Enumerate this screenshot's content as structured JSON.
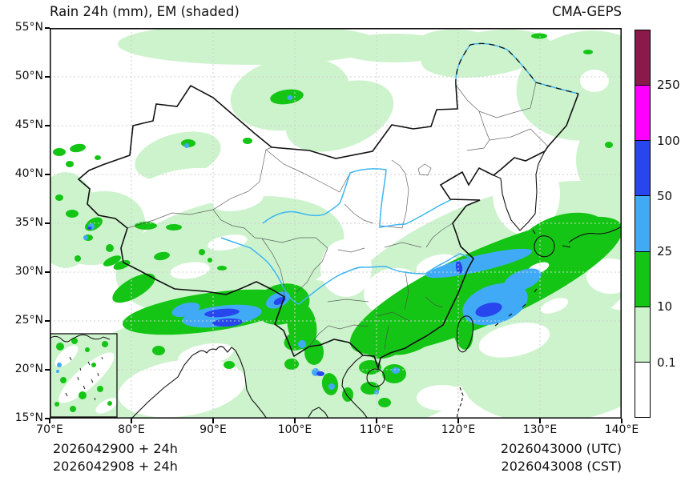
{
  "header": {
    "title_left": "Rain 24h (mm), EM (shaded)",
    "title_right": "CMA-GEPS"
  },
  "axes": {
    "x_tick_labels": [
      "70°E",
      "80°E",
      "90°E",
      "100°E",
      "110°E",
      "120°E",
      "130°E",
      "140°E"
    ],
    "y_tick_labels": [
      "55°N",
      "50°N",
      "45°N",
      "40°N",
      "35°N",
      "30°N",
      "25°N",
      "20°N",
      "15°N"
    ]
  },
  "colorbar": {
    "tick_labels_top_to_bottom": [
      "250",
      "100",
      "50",
      "25",
      "10",
      "0.1"
    ],
    "segment_colors_bottom_to_top": [
      "#ffffff",
      "#cdf3cd",
      "#15c515",
      "#41aaf7",
      "#2846ee",
      "#ff00ff",
      "#8b1a4a"
    ]
  },
  "footer": {
    "left_line1": "2026042900 + 24h",
    "left_line2": "2026042908 + 24h",
    "right_line1": "2026043000 (UTC)",
    "right_line2": "2026043008 (CST)"
  },
  "chart_data": {
    "type": "heatmap",
    "title": "Rain 24h (mm), EM (shaded)",
    "model": "CMA-GEPS",
    "projection": "lat-lon map of China and surroundings",
    "lon_range_deg_e": [
      70,
      140
    ],
    "lat_range_deg_n": [
      15,
      55
    ],
    "x_tick_values_deg_e": [
      70,
      80,
      90,
      100,
      110,
      120,
      130,
      140
    ],
    "y_tick_values_deg_n": [
      15,
      20,
      25,
      30,
      35,
      40,
      45,
      50,
      55
    ],
    "grid": "dashed graticule every 10 deg lon / 5 deg lat",
    "legend_position": "right vertical colorbar",
    "shading_levels_mm": [
      0.1,
      10,
      25,
      50,
      100,
      250
    ],
    "level_colors_low_to_high": [
      "#ffffff",
      "#cdf3cd",
      "#15c515",
      "#41aaf7",
      "#2846ee",
      "#ff00ff",
      "#8b1a4a"
    ],
    "init_label": "2026042900 + 24h",
    "init_label_cst": "2026042908 + 24h",
    "valid_label_utc": "2026043000 (UTC)",
    "valid_label_cst": "2026043008 (CST)",
    "notable_rain_areas": [
      {
        "region": "Himalayan foothills / NE India (83-97E, 25-29N)",
        "band_mm": "25-100 with 50-100 cores"
      },
      {
        "region": "SE China coast through East China Sea to S Japan (112-140E, 21-37N)",
        "band_mm": "10-50 with 50-100 core near 123-127E, 28-30N"
      },
      {
        "region": "Yunnan / Myanmar / Indochina (98-110E, 14-26N)",
        "band_mm": "10-50 scattered 50-100 spots"
      },
      {
        "region": "Altai, N Xinjiang (86-90E, 47-49N)",
        "band_mm": "10-50"
      },
      {
        "region": "W Kunlun / Kashmir (70-80E, 33-38N)",
        "band_mm": "10-50 specks"
      },
      {
        "region": "Tibetan Plateau and South Asia broad area",
        "band_mm": "0.1-10"
      },
      {
        "region": "NE China / Amur and far NW, band along 53-55N",
        "band_mm": "0.1-10"
      }
    ]
  }
}
